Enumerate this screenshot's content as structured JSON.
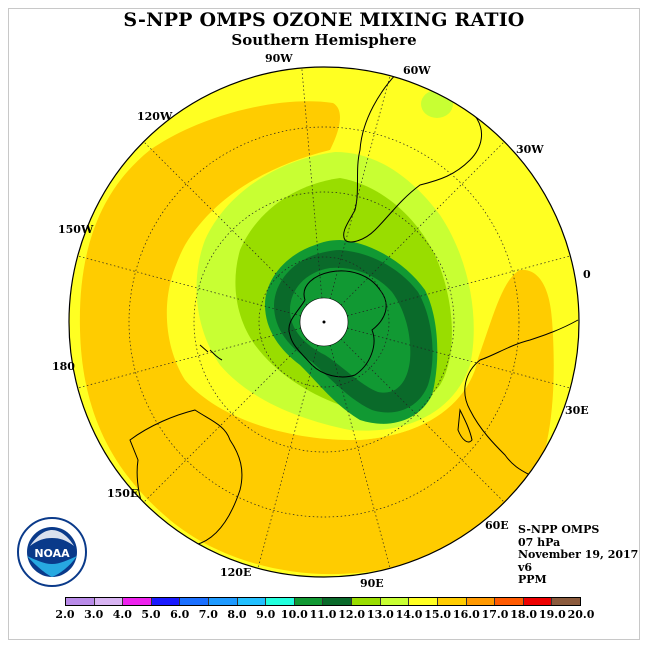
{
  "title": "S-NPP OMPS OZONE MIXING RATIO",
  "subtitle": "Southern Hemisphere",
  "longitude_labels": [
    "90W",
    "60W",
    "30W",
    "0",
    "30E",
    "60E",
    "90E",
    "120E",
    "150E",
    "180",
    "150W",
    "120W"
  ],
  "info": {
    "product": "S-NPP OMPS",
    "level": "07 hPa",
    "date": "November 19, 2017",
    "version": "v6",
    "units": "PPM"
  },
  "logo": {
    "text": "NOAA",
    "ring_text": "NATIONAL OCEANIC AND ATMOSPHERIC ADMINISTRATION · U.S. DEPARTMENT OF COMMERCE",
    "icon": "noaa-logo-icon"
  },
  "colorbar": {
    "ticks": [
      "2.0",
      "3.0",
      "4.0",
      "5.0",
      "6.0",
      "7.0",
      "8.0",
      "9.0",
      "10.0",
      "11.0",
      "12.0",
      "13.0",
      "14.0",
      "15.0",
      "16.0",
      "17.0",
      "18.0",
      "19.0",
      "20.0"
    ],
    "colors": [
      "#b98be8",
      "#d8b4f2",
      "#ee22ee",
      "#1a1aff",
      "#1a6fff",
      "#1e9aff",
      "#22c0ff",
      "#22ffdd",
      "#119933",
      "#0a6a2a",
      "#99dd00",
      "#c8ff33",
      "#ffff22",
      "#ffcc00",
      "#ff9900",
      "#ff5a00",
      "#ee0000",
      "#8b5a3c"
    ]
  },
  "map_colors": {
    "ocean_outer": "#ffff22",
    "band_16": "#ffcc00",
    "band_14": "#c8ff33",
    "band_13": "#99dd00",
    "band_11": "#119933",
    "band_12": "#0a6a2a",
    "pole": "#ffffff"
  }
}
